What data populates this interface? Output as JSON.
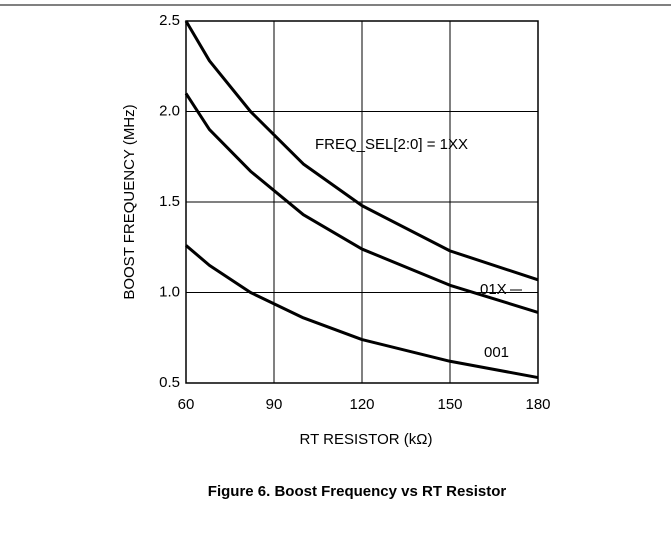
{
  "chart_data": {
    "type": "line",
    "xlabel": "RT RESISTOR (kΩ)",
    "ylabel": "BOOST FREQUENCY (MHz)",
    "caption": "Figure 6. Boost Frequency vs RT Resistor",
    "x": [
      60,
      68,
      82,
      100,
      120,
      150,
      180
    ],
    "series": [
      {
        "name": "FREQ_SEL[2:0] = 1XX",
        "color": "#000000",
        "values": [
          2.5,
          2.28,
          2.0,
          1.71,
          1.48,
          1.23,
          1.07
        ]
      },
      {
        "name": "01X",
        "color": "#000000",
        "values": [
          2.1,
          1.9,
          1.67,
          1.43,
          1.24,
          1.04,
          0.89
        ]
      },
      {
        "name": "001",
        "color": "#000000",
        "values": [
          1.26,
          1.15,
          1.0,
          0.86,
          0.74,
          0.62,
          0.53
        ]
      }
    ],
    "xlim": [
      60,
      180
    ],
    "xticks": [
      60,
      90,
      120,
      150,
      180
    ],
    "ylim": [
      0.5,
      2.5
    ],
    "yticks": [
      0.5,
      {
        "value": 1,
        "label": "1.0"
      },
      1.5,
      {
        "value": 2,
        "label": "2.0"
      },
      2.5
    ],
    "grid": true
  }
}
